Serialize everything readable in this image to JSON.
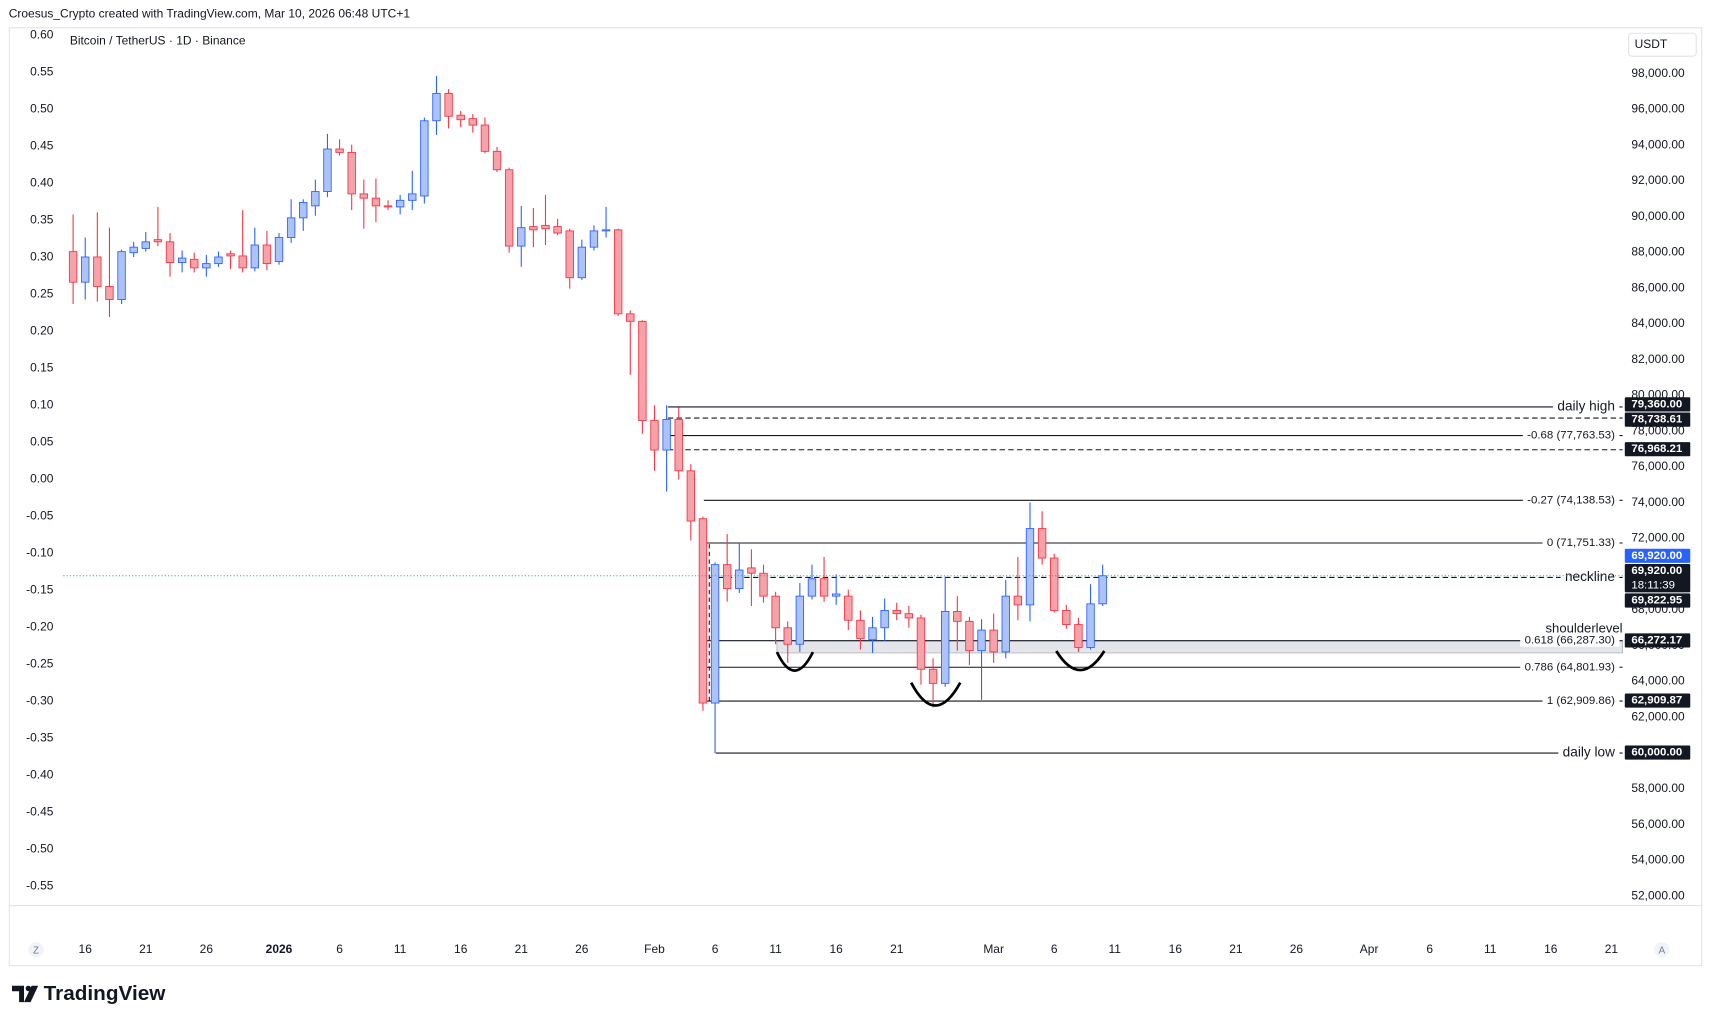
{
  "ui": {
    "credit": "Croesus_Crypto created with TradingView.com, Mar 10, 2026 06:48 UTC+1",
    "currency": "USDT",
    "timezone_button": "Z",
    "scale_button": "A",
    "logo": "TradingView"
  },
  "chart_data": {
    "type": "candlestick",
    "title": "Bitcoin / TetherUS · 1D · Binance",
    "up_color": "#2962ff",
    "up_fill": "#aec3f5",
    "down_color": "#f23645",
    "down_fill": "#f5a3aa",
    "categories": [
      null,
      "16",
      null,
      null,
      null,
      null,
      "21",
      null,
      null,
      null,
      null,
      "26",
      null,
      null,
      null,
      null,
      null,
      "2026",
      null,
      null,
      null,
      null,
      "6",
      null,
      null,
      null,
      null,
      "11",
      null,
      null,
      null,
      null,
      "16",
      null,
      null,
      null,
      null,
      "21",
      null,
      null,
      null,
      null,
      "26",
      null,
      null,
      null,
      null,
      null,
      "Feb",
      null,
      null,
      null,
      null,
      "6",
      null,
      null,
      null,
      null,
      "11",
      null,
      null,
      null,
      null,
      "16",
      null,
      null,
      null,
      null,
      "21",
      null,
      null,
      null,
      null,
      null,
      null,
      null,
      "Mar",
      null,
      null,
      null,
      null,
      "6",
      null,
      null,
      null,
      null,
      "11",
      null,
      null,
      null,
      null,
      "16",
      null,
      null,
      null,
      null,
      "21",
      null,
      null,
      null,
      null,
      "26",
      null,
      null,
      null,
      null,
      null,
      "Apr",
      null,
      null,
      null,
      null,
      "6",
      null,
      null,
      null,
      null,
      "11",
      null,
      null,
      null,
      null,
      "16",
      null,
      null,
      null,
      null,
      "21",
      null
    ],
    "open": [
      88050,
      86340,
      87750,
      86100,
      85370,
      87990,
      88230,
      88720,
      88600,
      87440,
      87620,
      87140,
      87380,
      87930,
      87810,
      87140,
      88420,
      87500,
      88840,
      89940,
      90610,
      91410,
      93790,
      93600,
      91280,
      91040,
      90610,
      90550,
      90920,
      91160,
      95370,
      96900,
      95680,
      95490,
      95130,
      93660,
      92630,
      88360,
      89450,
      89520,
      89450,
      89210,
      86590,
      88300,
      89210,
      89270,
      84570,
      84150,
      78600,
      76950,
      78660,
      75790,
      73110,
      62800,
      70540,
      69200,
      70360,
      70060,
      68780,
      67010,
      66090,
      68780,
      69750,
      68780,
      68780,
      67430,
      66340,
      67010,
      67980,
      67800,
      67560,
      64690,
      63900,
      67920,
      67370,
      65730,
      66880,
      65660,
      68780,
      68290,
      72560,
      70910,
      67980,
      67190,
      65910,
      68350,
      null,
      null,
      null,
      null,
      null,
      null,
      null,
      null,
      null,
      null,
      null,
      null,
      null,
      null,
      null,
      null,
      null,
      null,
      null,
      null,
      null,
      null,
      null,
      null,
      null,
      null,
      null,
      null,
      null,
      null,
      null,
      null,
      null,
      null,
      null,
      null,
      null,
      null,
      null,
      null,
      null,
      null,
      null
    ],
    "high": [
      90130,
      88840,
      90250,
      89390,
      88170,
      88600,
      89150,
      90550,
      89090,
      88110,
      87990,
      87870,
      88050,
      88110,
      90370,
      89390,
      89210,
      89090,
      90980,
      90980,
      92080,
      94640,
      94330,
      94030,
      92080,
      92140,
      90920,
      91220,
      92570,
      95550,
      97870,
      97140,
      95920,
      95740,
      95550,
      93910,
      92750,
      90610,
      90490,
      91220,
      89880,
      89330,
      88720,
      89520,
      90550,
      89330,
      84760,
      84210,
      79450,
      79450,
      79330,
      76160,
      73230,
      70670,
      72250,
      71760,
      71400,
      70540,
      69020,
      67370,
      69510,
      70540,
      70970,
      70000,
      69140,
      67980,
      67620,
      68650,
      68410,
      68230,
      67740,
      65300,
      69870,
      68780,
      67620,
      67490,
      67800,
      69690,
      70970,
      74020,
      73530,
      71150,
      68290,
      67560,
      69450,
      70540,
      null,
      null,
      null,
      null,
      null,
      null,
      null,
      null,
      null,
      null,
      null,
      null,
      null,
      null,
      null,
      null,
      null,
      null,
      null,
      null,
      null,
      null,
      null,
      null,
      null,
      null,
      null,
      null,
      null,
      null,
      null,
      null,
      null,
      null,
      null,
      null,
      null,
      null,
      null,
      null,
      null,
      null,
      null
    ],
    "low": [
      85120,
      85370,
      85250,
      84390,
      85120,
      87750,
      88050,
      88360,
      86650,
      86890,
      86890,
      86650,
      87200,
      87080,
      86890,
      86950,
      87010,
      87320,
      88540,
      89210,
      90060,
      91100,
      93420,
      90370,
      89330,
      89700,
      90370,
      90130,
      90370,
      90740,
      94580,
      94940,
      95010,
      94700,
      93540,
      92500,
      87990,
      87200,
      88300,
      88420,
      88970,
      85980,
      86470,
      88110,
      88840,
      84450,
      81160,
      77860,
      75790,
      74630,
      75300,
      71890,
      62370,
      60000,
      68470,
      68960,
      68230,
      68410,
      66090,
      65050,
      65660,
      68590,
      68470,
      68290,
      66880,
      65790,
      65600,
      66270,
      67430,
      67010,
      63830,
      62550,
      63710,
      65730,
      64930,
      62980,
      65050,
      65300,
      67430,
      67370,
      70540,
      67860,
      66950,
      65660,
      65790,
      68230,
      null,
      null,
      null,
      null,
      null,
      null,
      null,
      null,
      null,
      null,
      null,
      null,
      null,
      null,
      null,
      null,
      null,
      null,
      null,
      null,
      null,
      null,
      null,
      null,
      null,
      null,
      null,
      null,
      null,
      null,
      null,
      null,
      null,
      null,
      null,
      null,
      null,
      null,
      null,
      null,
      null,
      null,
      null
    ],
    "close": [
      86340,
      87750,
      86100,
      85370,
      88050,
      88300,
      88600,
      88600,
      87440,
      87690,
      87140,
      87380,
      87750,
      87810,
      87140,
      88420,
      87380,
      88840,
      89940,
      90800,
      91410,
      93790,
      93600,
      91280,
      91040,
      90610,
      90550,
      90920,
      91280,
      95370,
      96900,
      95620,
      95430,
      95130,
      93660,
      92630,
      88360,
      89390,
      89270,
      89330,
      89090,
      86590,
      88300,
      89210,
      89270,
      84570,
      84150,
      78600,
      76950,
      78660,
      75790,
      72980,
      62800,
      70540,
      69200,
      70240,
      70060,
      68780,
      67010,
      66090,
      68780,
      69750,
      68780,
      68900,
      67430,
      66400,
      67010,
      67980,
      67800,
      67560,
      64690,
      63900,
      67920,
      67370,
      65730,
      66880,
      65660,
      68780,
      68290,
      72560,
      70910,
      67980,
      67190,
      65910,
      68350,
      69920,
      null,
      null,
      null,
      null,
      null,
      null,
      null,
      null,
      null,
      null,
      null,
      null,
      null,
      null,
      null,
      null,
      null,
      null,
      null,
      null,
      null,
      null,
      null,
      null,
      null,
      null,
      null,
      null,
      null,
      null,
      null,
      null,
      null,
      null,
      null,
      null,
      null,
      null,
      null,
      null,
      null,
      null,
      null
    ],
    "ylim": [
      51500,
      100600
    ],
    "yticks": [
      {
        "value": 52000,
        "label": "52,000.00"
      },
      {
        "value": 54000,
        "label": "54,000.00"
      },
      {
        "value": 56000,
        "label": "56,000.00"
      },
      {
        "value": 58000,
        "label": "58,000.00"
      },
      {
        "value": 60000,
        "label": "60,000.00"
      },
      {
        "value": 62000,
        "label": "62,000.00"
      },
      {
        "value": 64000,
        "label": "64,000.00"
      },
      {
        "value": 66000,
        "label": "66,000.00"
      },
      {
        "value": 68000,
        "label": "68,000.00"
      },
      {
        "value": 70000,
        "label": "70,000.00"
      },
      {
        "value": 72000,
        "label": "72,000.00"
      },
      {
        "value": 74000,
        "label": "74,000.00"
      },
      {
        "value": 76000,
        "label": "76,000.00"
      },
      {
        "value": 78000,
        "label": "78,000.00"
      },
      {
        "value": 80000,
        "label": "80,000.00"
      },
      {
        "value": 82000,
        "label": "82,000.00"
      },
      {
        "value": 84000,
        "label": "84,000.00"
      },
      {
        "value": 86000,
        "label": "86,000.00"
      },
      {
        "value": 88000,
        "label": "88,000.00"
      },
      {
        "value": 90000,
        "label": "90,000.00"
      },
      {
        "value": 92000,
        "label": "92,000.00"
      },
      {
        "value": 94000,
        "label": "94,000.00"
      },
      {
        "value": 96000,
        "label": "96,000.00"
      },
      {
        "value": 98000,
        "label": "98,000.00"
      }
    ],
    "y2lim": [
      -0.575,
      0.611
    ],
    "y2ticks": [
      {
        "value": 0.6,
        "label": "0.60"
      },
      {
        "value": 0.55,
        "label": "0.55"
      },
      {
        "value": 0.5,
        "label": "0.50"
      },
      {
        "value": 0.45,
        "label": "0.45"
      },
      {
        "value": 0.4,
        "label": "0.40"
      },
      {
        "value": 0.35,
        "label": "0.35"
      },
      {
        "value": 0.3,
        "label": "0.30"
      },
      {
        "value": 0.25,
        "label": "0.25"
      },
      {
        "value": 0.2,
        "label": "0.20"
      },
      {
        "value": 0.15,
        "label": "0.15"
      },
      {
        "value": 0.1,
        "label": "0.10"
      },
      {
        "value": 0.05,
        "label": "0.05"
      },
      {
        "value": 0,
        "label": "0.00"
      },
      {
        "value": -0.05,
        "label": "-0.05"
      },
      {
        "value": -0.1,
        "label": "-0.10"
      },
      {
        "value": -0.15,
        "label": "-0.15"
      },
      {
        "value": -0.2,
        "label": "-0.20"
      },
      {
        "value": -0.25,
        "label": "-0.25"
      },
      {
        "value": -0.3,
        "label": "-0.30"
      },
      {
        "value": -0.35,
        "label": "-0.35"
      },
      {
        "value": -0.4,
        "label": "-0.40"
      },
      {
        "value": -0.45,
        "label": "-0.45"
      },
      {
        "value": -0.5,
        "label": "-0.50"
      },
      {
        "value": -0.55,
        "label": "-0.55"
      }
    ],
    "grid": false,
    "price_line_color": "#26a69a",
    "levels": [
      {
        "value": 79360,
        "text": "daily high",
        "style": "solid"
      },
      {
        "value": 78738.61,
        "style": "dashed"
      },
      {
        "value": 77763.53,
        "text": "-0.68 (77,763.53)",
        "style": "solid"
      },
      {
        "value": 76968.21,
        "style": "dashed"
      },
      {
        "value": 74138.53,
        "text": "-0.27 (74,138.53)",
        "style": "solid"
      },
      {
        "value": 71751.33,
        "text": "0 (71,751.33)",
        "style": "solid"
      },
      {
        "value": 69822.95,
        "text": "neckline",
        "style": "dashed"
      },
      {
        "value": 66287.3,
        "text": "0.618 (66,287.30)",
        "style": "solid"
      },
      {
        "value": 64801.93,
        "text": "0.786 (64,801.93)",
        "style": "solid"
      },
      {
        "value": 62909.86,
        "text": "1 (62,909.86)",
        "style": "solid"
      },
      {
        "value": 60000,
        "text": "daily low",
        "style": "solid"
      }
    ],
    "zone": {
      "text": "shoulderlevel",
      "range": [
        65600,
        66272.17
      ]
    },
    "badges": [
      {
        "value": 79360,
        "label": "79,360.00",
        "color": "#131722"
      },
      {
        "value": 78738.61,
        "label": "78,738.61",
        "color": "#131722"
      },
      {
        "value": 76968.21,
        "label": "76,968.21",
        "color": "#131722"
      },
      {
        "value": 69920,
        "label": "69,920.00",
        "color": "#2962ff"
      },
      {
        "value": 69920,
        "label": "69,920.00",
        "sublabel": "18:11:39",
        "color": "#131722"
      },
      {
        "value": 69822.95,
        "label": "69,822.95",
        "color": "#131722"
      },
      {
        "value": 66272.17,
        "label": "66,272.17",
        "color": "#131722"
      },
      {
        "value": 62909.87,
        "label": "62,909.87",
        "color": "#131722"
      },
      {
        "value": 60000,
        "label": "60,000.00",
        "color": "#131722"
      }
    ]
  }
}
